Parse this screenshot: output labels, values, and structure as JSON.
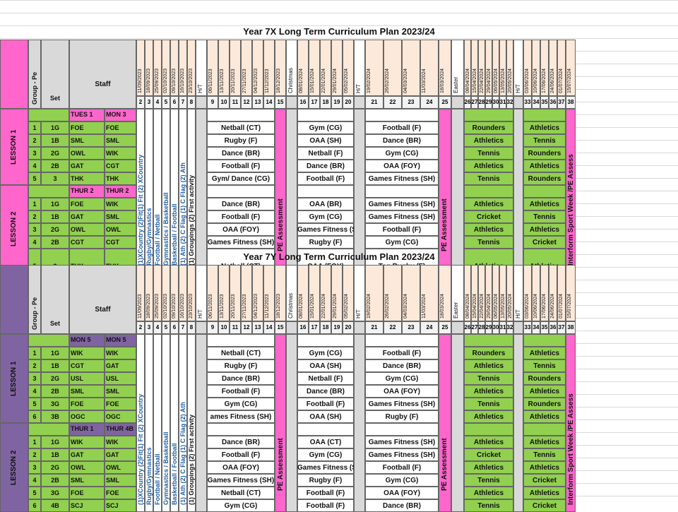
{
  "colors": {
    "pink": "#ff66cc",
    "purple": "#8064a2",
    "green": "#92d050",
    "grey": "#d9d9d9",
    "peach": "#fde9d9",
    "blue": "#1f5fa8",
    "magenta": "#ff3399"
  },
  "plans": [
    {
      "title": "Year 7X Long Term Curriculum Plan 2023/24",
      "staff_label": "Staff",
      "group_label": "Group - Pe",
      "set_label": "Set",
      "dates": [
        "11/09/2023",
        "18/09/2023",
        "25/09/2023",
        "02/10/2023",
        "09/10/2023",
        "16/10/2023",
        "23/10/2023",
        "H/T",
        "06/11/2023",
        "13/11/2023",
        "20/11/2023",
        "27/11/2023",
        "04/12/2023",
        "11/12/2023",
        "18/12/2023",
        "Christmas",
        "08/01/2024",
        "15/01/2024",
        "22/01/2024",
        "29/01/2024",
        "05/02/2024",
        "H/T",
        "19/02/2024",
        "26/02/2024",
        "04/03/2024",
        "11/03/2024",
        "18/03/2024",
        "Easter",
        "08/04/2024",
        "15/04/2024",
        "22/04/2024",
        "29/04/2024",
        "06/05/2024",
        "13/05/2024",
        "20/05/2024",
        "H/T",
        "03/06/2024",
        "10/06/2024",
        "17/06/2024",
        "24/06/2024",
        "01/07/2024",
        "15/07/2024"
      ],
      "weeks": [
        "2",
        "3",
        "4",
        "5",
        "6",
        "7",
        "8",
        "",
        "9",
        "10",
        "11",
        "12",
        "13",
        "14",
        "15",
        "",
        "16",
        "17",
        "18",
        "19",
        "20",
        "",
        "21",
        "22",
        "23",
        "24",
        "25",
        "",
        "26",
        "27",
        "28",
        "29",
        "30",
        "31",
        "32",
        "",
        "33",
        "34",
        "35",
        "36",
        "37",
        "38"
      ],
      "lesson1": {
        "label": "LESSON 1",
        "head": [
          "TUES 1",
          "MON 3"
        ],
        "rows": [
          {
            "n": "1",
            "set": "1G",
            "s1": "FOE",
            "s2": "FOE",
            "a": "Netball (CT)",
            "b": "Gym (CG)",
            "c": "Football (F)",
            "d": "Rounders",
            "e": "Athletics"
          },
          {
            "n": "2",
            "set": "1B",
            "s1": "SML",
            "s2": "SML",
            "a": "Rugby (F)",
            "b": "OAA (SH)",
            "c": "Dance (BR)",
            "d": "Athletics",
            "e": "Tennis"
          },
          {
            "n": "3",
            "set": "2G",
            "s1": "OWL",
            "s2": "WIK",
            "a": "Dance (BR)",
            "b": "Netball (F)",
            "c": "Gym (CG)",
            "d": "Tennis",
            "e": "Rounders"
          },
          {
            "n": "4",
            "set": "2B",
            "s1": "GAT",
            "s2": "CGT",
            "a": "Football (F)",
            "b": "Dance (BR)",
            "c": "OAA (FOY)",
            "d": "Athletics",
            "e": "Athletics"
          },
          {
            "n": "5",
            "set": "3",
            "s1": "THK",
            "s2": "THK",
            "a": "Gym/ Dance (CG)",
            "b": "Football (F)",
            "c": "Games Fitness (SH)",
            "d": "Tennis",
            "e": "Rounders"
          }
        ]
      },
      "lesson2": {
        "label": "LESSON 2",
        "head": [
          "THUR 2",
          "THUR 2"
        ],
        "rows": [
          {
            "n": "1",
            "set": "1G",
            "s1": "FOE",
            "s2": "WIK",
            "a": "Dance (BR)",
            "b": "OAA (BR)",
            "c": "Games Fitness (SH)",
            "d": "Athletics",
            "e": "Athletics"
          },
          {
            "n": "2",
            "set": "1B",
            "s1": "GAT",
            "s2": "SML",
            "a": "Football (F)",
            "b": "Gym (CG)",
            "c": "Games Fitness (SH)",
            "d": "Cricket",
            "e": "Tennis"
          },
          {
            "n": "3",
            "set": "2G",
            "s1": "OWL",
            "s2": "OWL",
            "a": "OAA (FOY)",
            "b": "Games Fitness (SH)",
            "c": "Football (F)",
            "d": "Athletics",
            "e": "Athletics"
          },
          {
            "n": "4",
            "set": "2B",
            "s1": "CGT",
            "s2": "CGT",
            "a": "Games Fitness (SH)",
            "b": "Rugby (F)",
            "c": "Gym (CG)",
            "d": "Tennis",
            "e": "Cricket"
          },
          {
            "n": "5",
            "set": "3",
            "s1": "THK",
            "s2": "THK",
            "a": "Netball (CT)",
            "b": "OAA (FOY)",
            "c": "Tag Rugby (F)",
            "d": "Athletics",
            "e": "Athletics"
          }
        ]
      }
    },
    {
      "title": "Year 7Y Long Term Curriculum Plan 2023/24",
      "staff_label": "Staff",
      "group_label": "Group - Pe",
      "set_label": "Set",
      "lesson1": {
        "label": "LESSON 1",
        "head": [
          "MON 5",
          "MON 5"
        ],
        "rows": [
          {
            "n": "1",
            "set": "1G",
            "s1": "WIK",
            "s2": "WIK",
            "a": "Netball (CT)",
            "b": "Gym (CG)",
            "c": "Football (F)",
            "d": "Rounders",
            "e": "Athletics"
          },
          {
            "n": "2",
            "set": "1B",
            "s1": "CGT",
            "s2": "GAT",
            "a": "Rugby (F)",
            "b": "OAA (SH)",
            "c": "Dance (BR)",
            "d": "Athletics",
            "e": "Tennis"
          },
          {
            "n": "3",
            "set": "2G",
            "s1": "USL",
            "s2": "USL",
            "a": "Dance (BR)",
            "b": "Netball (F)",
            "c": "Gym (CG)",
            "d": "Tennis",
            "e": "Rounders"
          },
          {
            "n": "4",
            "set": "2B",
            "s1": "SML",
            "s2": "SML",
            "a": "Football (F)",
            "b": "Dance (BR)",
            "c": "OAA (FOY)",
            "d": "Athletics",
            "e": "Athletics"
          },
          {
            "n": "5",
            "set": "3G",
            "s1": "FOE",
            "s2": "FOE",
            "a": "Gym (CG)",
            "b": "Football (F)",
            "c": "Games Fitness (SH)",
            "d": "Tennis",
            "e": "Rounders"
          },
          {
            "n": "6",
            "set": "3B",
            "s1": "OGC",
            "s2": "OGC",
            "a": "ames Fitness (SH)",
            "b": "OAA (SH)",
            "c": "Rugby (F)",
            "d": "Athletics",
            "e": "Athletics"
          }
        ]
      },
      "lesson2": {
        "label": "LESSON 2",
        "head": [
          "THUR 1",
          "THUR 4B"
        ],
        "rows": [
          {
            "n": "1",
            "set": "1G",
            "s1": "WIK",
            "s2": "WIK",
            "a": "Dance (BR)",
            "b": "OAA (CT)",
            "c": "Games Fitness (SH)",
            "d": "Athletics",
            "e": "Athletics"
          },
          {
            "n": "2",
            "set": "1B",
            "s1": "GAT",
            "s2": "GAT",
            "a": "Football (F)",
            "b": "Gym (CG)",
            "c": "Games Fitness (SH)",
            "d": "Cricket",
            "e": "Tennis"
          },
          {
            "n": "3",
            "set": "2G",
            "s1": "OWL",
            "s2": "OWL",
            "a": "OAA (FOY)",
            "b": "Games Fitness (SH)",
            "c": "Football (F)",
            "d": "Athletics",
            "e": "Athletics"
          },
          {
            "n": "4",
            "set": "2B",
            "s1": "SML",
            "s2": "SML",
            "a": "Games Fitness (SH)",
            "b": "Rugby (F)",
            "c": "Gym (CG)",
            "d": "Tennis",
            "e": "Cricket"
          },
          {
            "n": "5",
            "set": "3G",
            "s1": "FOE",
            "s2": "FOE",
            "a": "Netball (CT)",
            "b": "Football (F)",
            "c": "OAA (FOY)",
            "d": "Athletics",
            "e": "Athletics"
          },
          {
            "n": "6",
            "set": "4B",
            "s1": "SCJ",
            "s2": "SCJ",
            "a": "Gym (CG)",
            "b": "Football (F)",
            "c": "Dance (BR)",
            "d": "Tennis",
            "e": "Cricket"
          }
        ]
      }
    }
  ],
  "vertical_labels": {
    "xcountry": "(1)XCountry (2)Fit(1) Fit (2) XCountry",
    "rugby": "Rugby/Gymnastics",
    "football": "Football / Netball",
    "gymnastics": "Gymnastics / Basketball",
    "basketball": "Basketball / Football",
    "ath": "(1) Ath (2) C Flag (1) C Flag (2) Ath",
    "groupings": "(1) Groupings (2) First activity",
    "pe_assessment": "PE Assessment",
    "interform": "Interform Sport Week /PE Assess"
  }
}
